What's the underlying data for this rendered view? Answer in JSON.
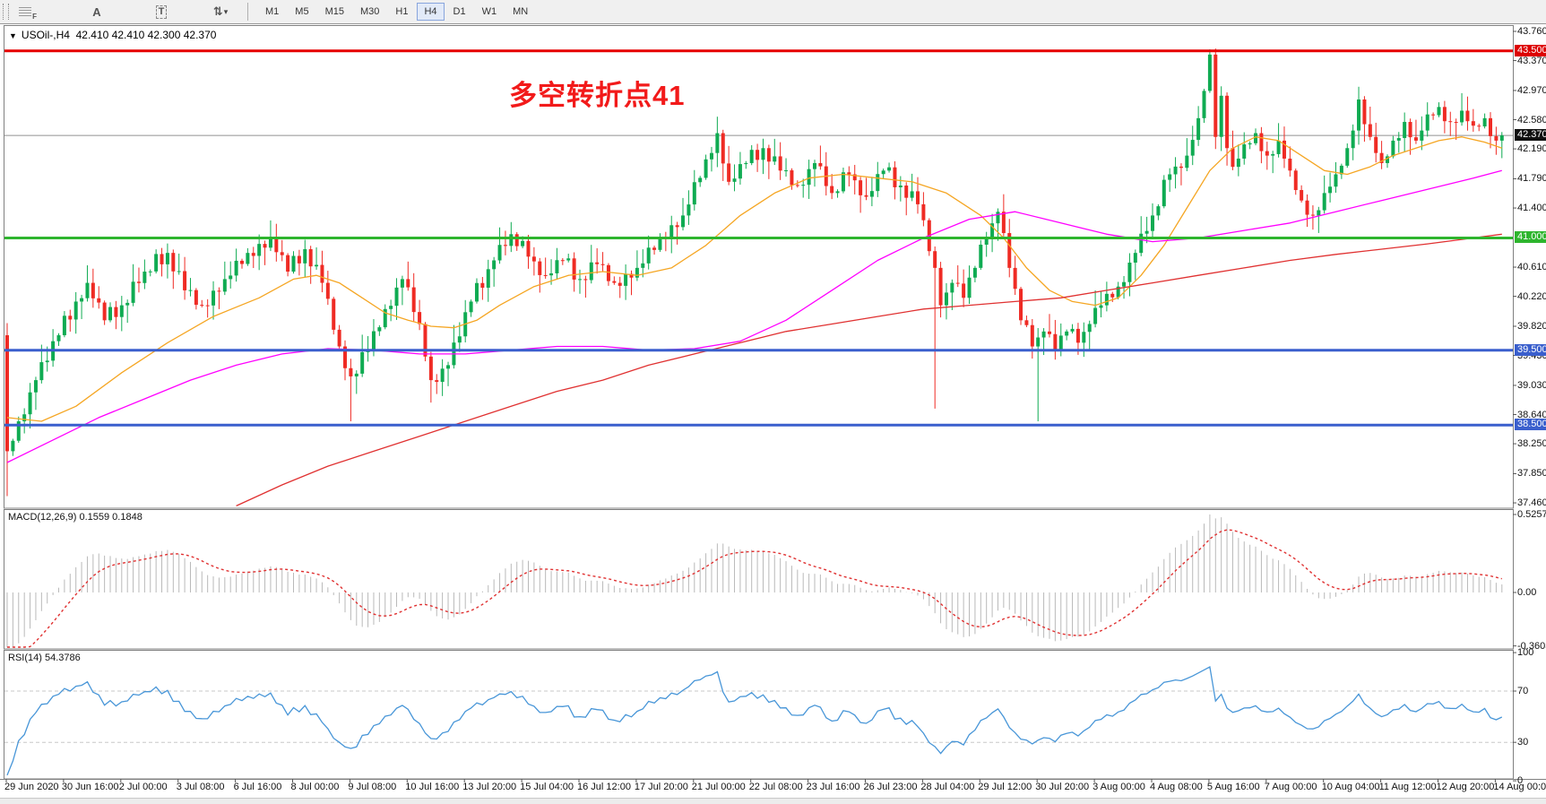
{
  "toolbar": {
    "tools": [
      {
        "name": "grid-f-icon",
        "label": "F"
      },
      {
        "name": "text-label-icon",
        "label": "A"
      },
      {
        "name": "text-box-icon",
        "label": "T"
      },
      {
        "name": "arrows-icon",
        "label": "⇅"
      }
    ],
    "dropdown_caret": "▾",
    "timeframes": [
      {
        "label": "M1"
      },
      {
        "label": "M5"
      },
      {
        "label": "M15"
      },
      {
        "label": "M30"
      },
      {
        "label": "H1"
      },
      {
        "label": "H4"
      },
      {
        "label": "D1"
      },
      {
        "label": "W1"
      },
      {
        "label": "MN"
      }
    ],
    "active_timeframe": "H4"
  },
  "chart_header": {
    "collapse_glyph": "▼",
    "title": "USOil-,H4",
    "ohlc": "42.410 42.410 42.300 42.370"
  },
  "annotation": {
    "text": "多空转折点41",
    "color": "#f21a1a"
  },
  "indicators": {
    "macd_label": "MACD(12,26,9)",
    "macd_values": "0.1559 0.1848",
    "rsi_label": "RSI(14)",
    "rsi_value": "54.3786"
  },
  "price_axis": {
    "tick_labels": [
      "43.760",
      "43.370",
      "42.970",
      "42.580",
      "42.190",
      "41.790",
      "41.400",
      "40.610",
      "40.220",
      "39.820",
      "39.430",
      "39.030",
      "38.640",
      "38.250",
      "37.850",
      "37.460"
    ],
    "tick_prices": [
      43.76,
      43.37,
      42.97,
      42.58,
      42.19,
      41.79,
      41.4,
      40.61,
      40.22,
      39.82,
      39.43,
      39.03,
      38.64,
      38.25,
      37.85,
      37.46
    ],
    "badges": [
      {
        "label": "43.500",
        "price": 43.5,
        "bg": "#dd0000"
      },
      {
        "label": "42.370",
        "price": 42.37,
        "bg": "#101010"
      },
      {
        "label": "41.000",
        "price": 41.0,
        "bg": "#2eb52e"
      },
      {
        "label": "39.500",
        "price": 39.5,
        "bg": "#3a5fcd"
      },
      {
        "label": "38.500",
        "price": 38.5,
        "bg": "#3a5fcd"
      }
    ]
  },
  "macd_axis": {
    "labels": [
      "0.5257",
      "0.00",
      "-0.3603"
    ],
    "values": [
      0.5257,
      0,
      -0.3603
    ]
  },
  "rsi_axis": {
    "labels": [
      "100",
      "70",
      "30",
      "0"
    ],
    "values": [
      100,
      70,
      30,
      0
    ]
  },
  "time_axis": {
    "labels": [
      "29 Jun 2020",
      "30 Jun 16:00",
      "2 Jul 00:00",
      "3 Jul 08:00",
      "6 Jul 16:00",
      "8 Jul 00:00",
      "9 Jul 08:00",
      "10 Jul 16:00",
      "13 Jul 20:00",
      "15 Jul 04:00",
      "16 Jul 12:00",
      "17 Jul 20:00",
      "21 Jul 00:00",
      "22 Jul 08:00",
      "23 Jul 16:00",
      "26 Jul 23:00",
      "28 Jul 04:00",
      "29 Jul 12:00",
      "30 Jul 20:00",
      "3 Aug 00:00",
      "4 Aug 08:00",
      "5 Aug 16:00",
      "7 Aug 00:00",
      "10 Aug 04:00",
      "11 Aug 12:00",
      "12 Aug 20:00",
      "14 Aug 00:00"
    ]
  },
  "chart_data": {
    "type": "candlestick",
    "symbol": "USOil-",
    "timeframe": "H4",
    "visible_price_range": [
      37.39,
      43.83
    ],
    "candle_count": 262,
    "first_open": 39.7,
    "close_waypoints": [
      [
        0,
        38.15
      ],
      [
        2,
        38.55
      ],
      [
        5,
        39.1
      ],
      [
        9,
        39.7
      ],
      [
        12,
        40.15
      ],
      [
        14,
        40.4
      ],
      [
        17,
        39.9
      ],
      [
        20,
        40.1
      ],
      [
        24,
        40.55
      ],
      [
        28,
        40.8
      ],
      [
        31,
        40.3
      ],
      [
        34,
        40.1
      ],
      [
        38,
        40.45
      ],
      [
        42,
        40.8
      ],
      [
        46,
        41.0
      ],
      [
        49,
        40.55
      ],
      [
        52,
        40.85
      ],
      [
        55,
        40.4
      ],
      [
        58,
        39.55
      ],
      [
        60,
        39.15
      ],
      [
        63,
        39.5
      ],
      [
        66,
        40.05
      ],
      [
        69,
        40.45
      ],
      [
        72,
        39.85
      ],
      [
        74,
        39.1
      ],
      [
        77,
        39.3
      ],
      [
        81,
        40.15
      ],
      [
        85,
        40.7
      ],
      [
        88,
        41.05
      ],
      [
        91,
        40.75
      ],
      [
        94,
        40.5
      ],
      [
        97,
        40.7
      ],
      [
        100,
        40.45
      ],
      [
        103,
        40.65
      ],
      [
        106,
        40.4
      ],
      [
        110,
        40.6
      ],
      [
        114,
        41.0
      ],
      [
        118,
        41.3
      ],
      [
        122,
        42.05
      ],
      [
        124,
        42.4
      ],
      [
        126,
        41.75
      ],
      [
        129,
        42.0
      ],
      [
        132,
        42.2
      ],
      [
        135,
        41.9
      ],
      [
        138,
        41.7
      ],
      [
        141,
        42.0
      ],
      [
        144,
        41.6
      ],
      [
        147,
        41.85
      ],
      [
        150,
        41.55
      ],
      [
        153,
        41.9
      ],
      [
        156,
        41.7
      ],
      [
        159,
        41.45
      ],
      [
        162,
        40.6
      ],
      [
        163,
        40.1
      ],
      [
        165,
        40.4
      ],
      [
        167,
        40.2
      ],
      [
        169,
        40.6
      ],
      [
        171,
        41.0
      ],
      [
        173,
        41.35
      ],
      [
        175,
        40.6
      ],
      [
        177,
        39.9
      ],
      [
        179,
        39.55
      ],
      [
        181,
        39.75
      ],
      [
        183,
        39.5
      ],
      [
        185,
        39.75
      ],
      [
        187,
        39.6
      ],
      [
        189,
        39.85
      ],
      [
        191,
        40.1
      ],
      [
        194,
        40.35
      ],
      [
        197,
        40.8
      ],
      [
        200,
        41.3
      ],
      [
        203,
        41.85
      ],
      [
        206,
        42.1
      ],
      [
        208,
        42.6
      ],
      [
        210,
        43.45
      ],
      [
        211,
        42.35
      ],
      [
        212,
        42.9
      ],
      [
        213,
        42.2
      ],
      [
        214,
        41.95
      ],
      [
        216,
        42.25
      ],
      [
        218,
        42.4
      ],
      [
        220,
        42.1
      ],
      [
        222,
        42.3
      ],
      [
        224,
        41.9
      ],
      [
        226,
        41.5
      ],
      [
        228,
        41.3
      ],
      [
        230,
        41.6
      ],
      [
        232,
        41.85
      ],
      [
        234,
        42.2
      ],
      [
        236,
        42.85
      ],
      [
        238,
        42.35
      ],
      [
        240,
        42.0
      ],
      [
        242,
        42.3
      ],
      [
        244,
        42.55
      ],
      [
        246,
        42.3
      ],
      [
        248,
        42.65
      ],
      [
        250,
        42.75
      ],
      [
        252,
        42.55
      ],
      [
        254,
        42.7
      ],
      [
        256,
        42.5
      ],
      [
        258,
        42.6
      ],
      [
        260,
        42.3
      ],
      [
        261,
        42.37
      ]
    ],
    "wick_overrides": [
      [
        0,
        37.55,
        null
      ],
      [
        60,
        38.55,
        null
      ],
      [
        74,
        38.8,
        null
      ],
      [
        124,
        null,
        42.62
      ],
      [
        162,
        38.72,
        null
      ],
      [
        180,
        38.55,
        null
      ],
      [
        210,
        null,
        43.52
      ],
      [
        236,
        null,
        43.02
      ]
    ],
    "indicator_warmup_closes": [
      41.2,
      41.0,
      40.8,
      40.7,
      40.5,
      40.3,
      40.2,
      40.0,
      39.9,
      39.7,
      39.5,
      39.4,
      39.2,
      39.1,
      38.9,
      38.8,
      38.7,
      38.6,
      38.5,
      38.45,
      38.4,
      38.35,
      38.3,
      38.3,
      38.25,
      38.2,
      38.2,
      38.15,
      38.1,
      38.1
    ],
    "moving_averages": [
      {
        "name": "ma-fast",
        "color": "#f5a623",
        "points": [
          [
            0,
            38.6
          ],
          [
            6,
            38.55
          ],
          [
            12,
            38.75
          ],
          [
            20,
            39.2
          ],
          [
            28,
            39.6
          ],
          [
            36,
            39.95
          ],
          [
            44,
            40.2
          ],
          [
            50,
            40.45
          ],
          [
            54,
            40.5
          ],
          [
            58,
            40.4
          ],
          [
            62,
            40.2
          ],
          [
            66,
            40.0
          ],
          [
            70,
            39.9
          ],
          [
            74,
            39.82
          ],
          [
            78,
            39.8
          ],
          [
            82,
            39.9
          ],
          [
            86,
            40.1
          ],
          [
            92,
            40.35
          ],
          [
            98,
            40.5
          ],
          [
            104,
            40.55
          ],
          [
            110,
            40.5
          ],
          [
            116,
            40.6
          ],
          [
            122,
            40.9
          ],
          [
            128,
            41.3
          ],
          [
            134,
            41.6
          ],
          [
            140,
            41.8
          ],
          [
            146,
            41.85
          ],
          [
            152,
            41.8
          ],
          [
            158,
            41.75
          ],
          [
            164,
            41.6
          ],
          [
            170,
            41.3
          ],
          [
            174,
            41.0
          ],
          [
            178,
            40.6
          ],
          [
            182,
            40.3
          ],
          [
            186,
            40.15
          ],
          [
            190,
            40.1
          ],
          [
            194,
            40.2
          ],
          [
            198,
            40.5
          ],
          [
            202,
            40.9
          ],
          [
            206,
            41.4
          ],
          [
            210,
            41.9
          ],
          [
            214,
            42.2
          ],
          [
            218,
            42.35
          ],
          [
            222,
            42.3
          ],
          [
            226,
            42.1
          ],
          [
            230,
            41.9
          ],
          [
            234,
            41.85
          ],
          [
            238,
            41.95
          ],
          [
            242,
            42.1
          ],
          [
            246,
            42.2
          ],
          [
            250,
            42.3
          ],
          [
            254,
            42.35
          ],
          [
            258,
            42.28
          ],
          [
            261,
            42.2
          ]
        ]
      },
      {
        "name": "ma-mid",
        "color": "#ff00ff",
        "points": [
          [
            0,
            38.0
          ],
          [
            8,
            38.3
          ],
          [
            16,
            38.6
          ],
          [
            24,
            38.85
          ],
          [
            32,
            39.1
          ],
          [
            40,
            39.3
          ],
          [
            48,
            39.45
          ],
          [
            56,
            39.52
          ],
          [
            64,
            39.5
          ],
          [
            72,
            39.45
          ],
          [
            80,
            39.45
          ],
          [
            88,
            39.5
          ],
          [
            96,
            39.55
          ],
          [
            104,
            39.55
          ],
          [
            112,
            39.5
          ],
          [
            120,
            39.52
          ],
          [
            128,
            39.62
          ],
          [
            136,
            39.9
          ],
          [
            144,
            40.3
          ],
          [
            152,
            40.7
          ],
          [
            160,
            41.0
          ],
          [
            168,
            41.25
          ],
          [
            176,
            41.35
          ],
          [
            184,
            41.2
          ],
          [
            192,
            41.05
          ],
          [
            200,
            40.95
          ],
          [
            208,
            41.0
          ],
          [
            216,
            41.1
          ],
          [
            224,
            41.2
          ],
          [
            232,
            41.35
          ],
          [
            240,
            41.5
          ],
          [
            248,
            41.65
          ],
          [
            256,
            41.8
          ],
          [
            261,
            41.9
          ]
        ]
      },
      {
        "name": "ma-slow",
        "color": "#e03131",
        "points": [
          [
            40,
            37.42
          ],
          [
            48,
            37.7
          ],
          [
            56,
            37.95
          ],
          [
            64,
            38.15
          ],
          [
            72,
            38.35
          ],
          [
            80,
            38.55
          ],
          [
            88,
            38.75
          ],
          [
            96,
            38.95
          ],
          [
            104,
            39.1
          ],
          [
            112,
            39.3
          ],
          [
            120,
            39.45
          ],
          [
            128,
            39.6
          ],
          [
            136,
            39.75
          ],
          [
            144,
            39.85
          ],
          [
            152,
            39.95
          ],
          [
            160,
            40.05
          ],
          [
            168,
            40.1
          ],
          [
            176,
            40.15
          ],
          [
            184,
            40.2
          ],
          [
            192,
            40.3
          ],
          [
            200,
            40.4
          ],
          [
            208,
            40.5
          ],
          [
            216,
            40.6
          ],
          [
            224,
            40.7
          ],
          [
            232,
            40.78
          ],
          [
            240,
            40.85
          ],
          [
            248,
            40.92
          ],
          [
            256,
            41.0
          ],
          [
            261,
            41.05
          ]
        ]
      }
    ],
    "horizontal_lines": [
      {
        "price": 43.5,
        "color": "#e60000",
        "width": 3
      },
      {
        "price": 41.0,
        "color": "#2eb52e",
        "width": 3
      },
      {
        "price": 39.5,
        "color": "#3a5fcd",
        "width": 3
      },
      {
        "price": 38.5,
        "color": "#3a5fcd",
        "width": 3
      }
    ],
    "current_price_line": {
      "price": 42.37,
      "color": "#909090",
      "width": 1
    },
    "macd": {
      "params": [
        12,
        26,
        9
      ],
      "display_values": [
        0.1559,
        0.1848
      ],
      "axis_max": 0.5257,
      "axis_min": -0.3603,
      "hist_color": "#b9b9b9",
      "signal_color": "#e03131"
    },
    "rsi": {
      "period": 14,
      "value": 54.3786,
      "levels": [
        70,
        30
      ],
      "color": "#4896d8"
    },
    "candle_colors": {
      "up": "#0fab52",
      "down": "#ef2b24"
    }
  }
}
